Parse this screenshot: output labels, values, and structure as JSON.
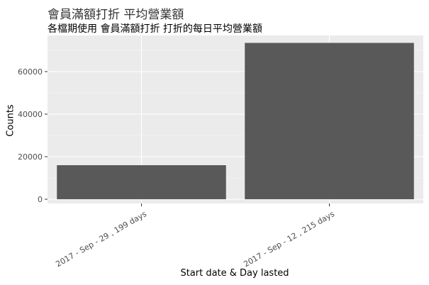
{
  "chart_data": {
    "type": "bar",
    "title": "會員滿額打折 平均營業額",
    "subtitle": "各檔期使用 會員滿額打折 打折的每日平均營業額",
    "xlabel": "Start date & Day lasted",
    "ylabel": "Counts",
    "categories": [
      "2017 - Sep - 29 , 199 days",
      "2017 - Sep - 12 , 215 days"
    ],
    "values": [
      16000,
      73500
    ],
    "ylim": [
      -2000,
      77000
    ],
    "yticks": [
      0,
      20000,
      40000,
      60000
    ],
    "grid": true,
    "bar_color": "#595959",
    "panel_color": "#ebebeb"
  }
}
